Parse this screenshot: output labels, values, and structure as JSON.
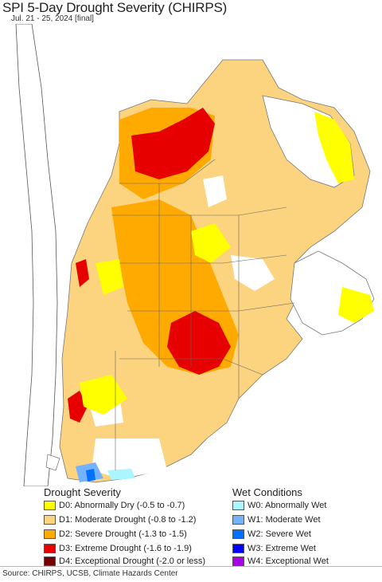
{
  "header": {
    "title": "SPI 5-Day Drought Severity (CHIRPS)",
    "subtitle": "Jul. 21 - 25, 2024 [final]"
  },
  "legend": {
    "drought_heading": "Drought Severity",
    "wet_heading": "Wet Conditions",
    "drought_items": [
      {
        "label": "D0: Abnormally Dry (-0.5 to -0.7)",
        "color": "#ffff00"
      },
      {
        "label": "D1: Moderate Drought (-0.8 to -1.2)",
        "color": "#fcd37f"
      },
      {
        "label": "D2: Severe Drought (-1.3 to -1.5)",
        "color": "#ffaa00"
      },
      {
        "label": "D3: Extreme Drought (-1.6 to -1.9)",
        "color": "#e60000"
      },
      {
        "label": "D4: Exceptional Drought (-2.0 or less)",
        "color": "#730000"
      }
    ],
    "wet_items": [
      {
        "label": "W0: Abnormally Wet",
        "color": "#aaf5ff"
      },
      {
        "label": "W1: Moderate Wet",
        "color": "#73b2ff"
      },
      {
        "label": "W2: Severe Wet",
        "color": "#0070ff"
      },
      {
        "label": "W3: Extreme Wet",
        "color": "#0000ff"
      },
      {
        "label": "W4: Exceptional Wet",
        "color": "#a900e6"
      }
    ]
  },
  "footer": {
    "source": "Source: CHIRPS, UCSB, Climate Hazards Center"
  }
}
